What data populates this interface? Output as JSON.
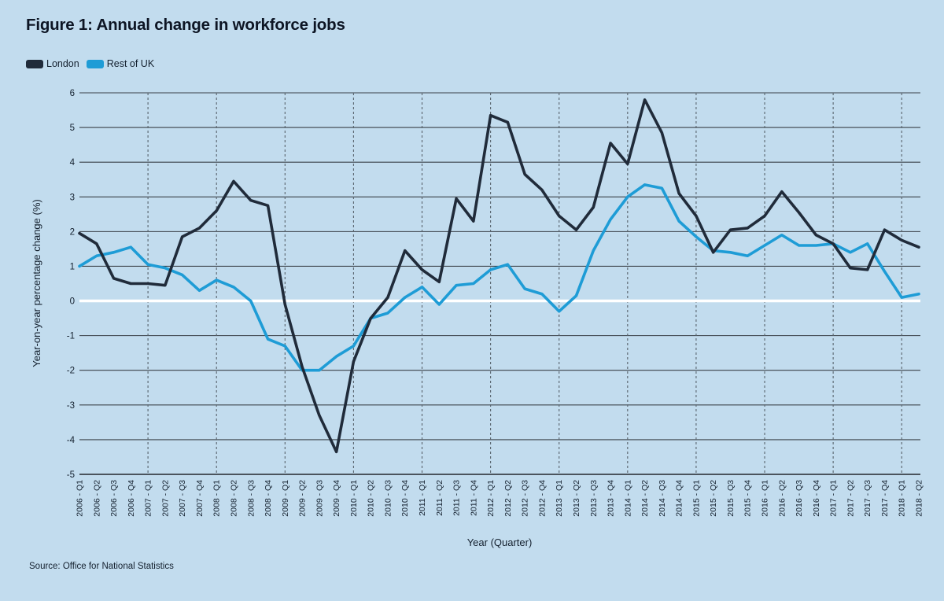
{
  "title": "Figure 1: Annual change in workforce jobs",
  "source": "Source: Office for National Statistics",
  "colors": {
    "background": "#c2dcee",
    "london": "#202b3a",
    "rest_of_uk": "#1e9cd6",
    "gridline": "#3a4148",
    "dashed_gridline": "#58636c",
    "zero_line": "#ffffff",
    "text": "#14202e"
  },
  "chart_data": {
    "type": "line",
    "title": "Figure 1: Annual change in workforce jobs",
    "xlabel": "Year (Quarter)",
    "ylabel": "Year-on-year percentage change (%)",
    "ylim": [
      -5,
      6
    ],
    "yticks": [
      6,
      5,
      4,
      3,
      2,
      1,
      0,
      -1,
      -2,
      -3,
      -4,
      -5
    ],
    "grid": "horizontal solid; vertical dashed at each Q1; white emphasis line at 0",
    "legend_position": "top-left above plot",
    "categories": [
      "2006 - Q1",
      "2006 - Q2",
      "2006 - Q3",
      "2006 - Q4",
      "2007 - Q1",
      "2007 - Q2",
      "2007 - Q3",
      "2007 - Q4",
      "2008 - Q1",
      "2008 - Q2",
      "2008 - Q3",
      "2008 - Q4",
      "2009 - Q1",
      "2009 - Q2",
      "2009 - Q3",
      "2009 - Q4",
      "2010 - Q1",
      "2010 - Q2",
      "2010 - Q3",
      "2010 - Q4",
      "2011 - Q1",
      "2011 - Q2",
      "2011 - Q3",
      "2011 - Q4",
      "2012 - Q1",
      "2012 - Q2",
      "2012 - Q3",
      "2012 - Q4",
      "2013 - Q1",
      "2013 - Q2",
      "2013 - Q3",
      "2013 - Q4",
      "2014 - Q1",
      "2014 - Q2",
      "2014 - Q3",
      "2014 - Q4",
      "2015 - Q1",
      "2015 - Q2",
      "2015 - Q3",
      "2015 - Q4",
      "2016 - Q1",
      "2016 - Q2",
      "2016 - Q3",
      "2016 - Q4",
      "2017 - Q1",
      "2017 - Q2",
      "2017 - Q3",
      "2017 - Q4",
      "2018 - Q1",
      "2018 - Q2"
    ],
    "series": [
      {
        "name": "London",
        "color": "#202b3a",
        "values": [
          1.95,
          1.65,
          0.65,
          0.5,
          0.5,
          0.45,
          1.85,
          2.1,
          2.6,
          3.45,
          2.9,
          2.75,
          -0.1,
          -1.9,
          -3.3,
          -4.35,
          -1.75,
          -0.5,
          0.1,
          1.45,
          0.9,
          0.55,
          2.95,
          2.3,
          5.35,
          5.15,
          3.65,
          3.2,
          2.45,
          2.05,
          2.7,
          4.55,
          3.95,
          5.8,
          4.85,
          3.1,
          2.45,
          1.4,
          2.05,
          2.1,
          2.45,
          3.15,
          2.55,
          1.9,
          1.65,
          0.95,
          0.9,
          2.05,
          1.75,
          1.55
        ]
      },
      {
        "name": "Rest of UK",
        "color": "#1e9cd6",
        "values": [
          1.0,
          1.3,
          1.4,
          1.55,
          1.05,
          0.95,
          0.75,
          0.3,
          0.6,
          0.4,
          0.0,
          -1.1,
          -1.3,
          -2.0,
          -2.0,
          -1.6,
          -1.3,
          -0.5,
          -0.35,
          0.1,
          0.4,
          -0.1,
          0.45,
          0.5,
          0.9,
          1.05,
          0.35,
          0.2,
          -0.3,
          0.15,
          1.45,
          2.35,
          3.0,
          3.35,
          3.25,
          2.3,
          1.85,
          1.45,
          1.4,
          1.3,
          1.6,
          1.9,
          1.6,
          1.6,
          1.65,
          1.4,
          1.65,
          0.85,
          0.1,
          0.2
        ]
      }
    ]
  }
}
